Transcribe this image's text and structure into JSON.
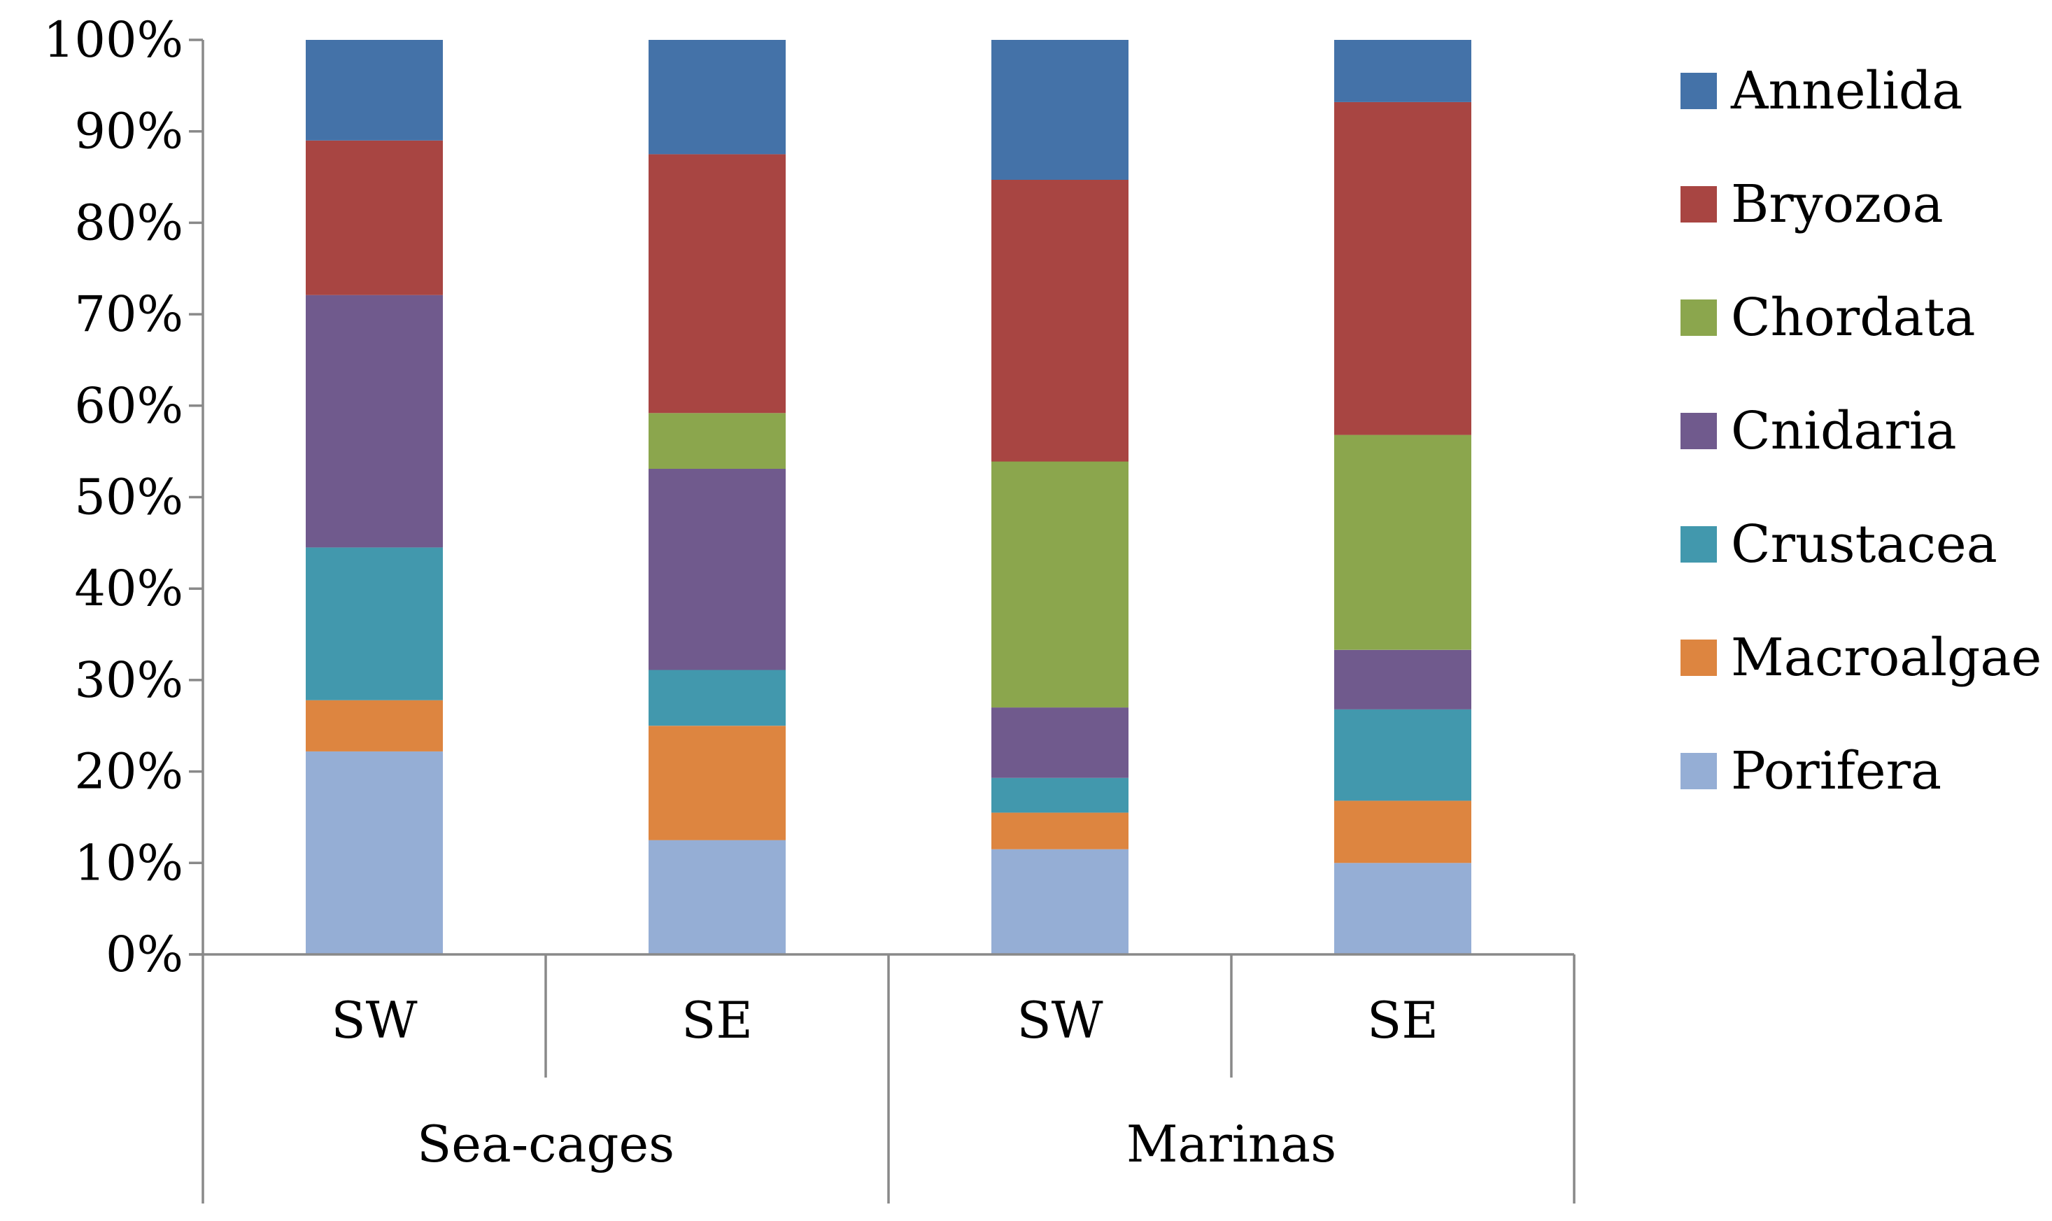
{
  "chart_data": {
    "type": "bar",
    "stacked": true,
    "percent": true,
    "title": "",
    "xlabel": "",
    "ylabel": "",
    "ylim": [
      0,
      100
    ],
    "yticks": [
      "0%",
      "10%",
      "20%",
      "30%",
      "40%",
      "50%",
      "60%",
      "70%",
      "80%",
      "90%",
      "100%"
    ],
    "yticks_values": [
      0,
      10,
      20,
      30,
      40,
      50,
      60,
      70,
      80,
      90,
      100
    ],
    "categories": [
      "SW",
      "SE",
      "SW",
      "SE"
    ],
    "groups": [
      {
        "label": "Sea-cages",
        "categories": [
          0,
          1
        ]
      },
      {
        "label": "Marinas",
        "categories": [
          2,
          3
        ]
      }
    ],
    "series": [
      {
        "name": "Porifera",
        "color": "#95aed5",
        "values": [
          22.2,
          12.5,
          11.5,
          10.0
        ]
      },
      {
        "name": "Macroalgae",
        "color": "#dd8540",
        "values": [
          5.6,
          12.5,
          4.0,
          6.8
        ]
      },
      {
        "name": "Crustacea",
        "color": "#4298ad",
        "values": [
          16.7,
          6.1,
          3.8,
          10.0
        ]
      },
      {
        "name": "Cnidaria",
        "color": "#705a8d",
        "values": [
          27.6,
          22.0,
          7.7,
          6.5
        ]
      },
      {
        "name": "Chordata",
        "color": "#8ba64d",
        "values": [
          0.0,
          6.1,
          26.9,
          23.5
        ]
      },
      {
        "name": "Bryozoa",
        "color": "#a84542",
        "values": [
          16.9,
          28.3,
          30.8,
          36.4
        ]
      },
      {
        "name": "Annelida",
        "color": "#4472a8",
        "values": [
          11.0,
          12.5,
          15.3,
          6.8
        ]
      }
    ],
    "legend": {
      "position": "right",
      "order": [
        "Annelida",
        "Bryozoa",
        "Chordata",
        "Cnidaria",
        "Crustacea",
        "Macroalgae",
        "Porifera"
      ]
    },
    "grid": false
  }
}
